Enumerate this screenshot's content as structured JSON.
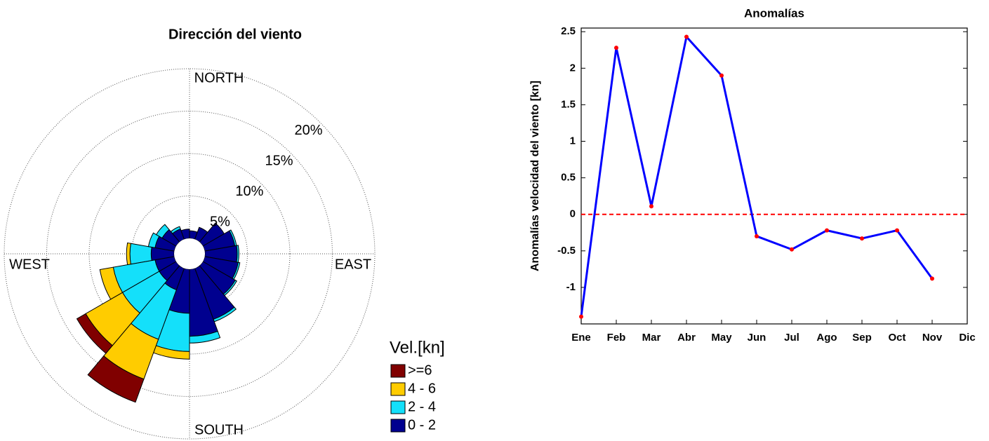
{
  "chart_data": [
    {
      "type": "windrose",
      "title": "Dirección del viento",
      "direction_labels": [
        "NORTH",
        "EAST",
        "SOUTH",
        "WEST"
      ],
      "categories": [
        null,
        null,
        null,
        null,
        null,
        null,
        null,
        null,
        null,
        null,
        null,
        null,
        null,
        null,
        null,
        null,
        null,
        null
      ],
      "rlim": [
        0,
        20
      ],
      "rticks": [
        {
          "value": 5,
          "label": "5%"
        },
        {
          "value": 10,
          "label": "10%"
        },
        {
          "value": 15,
          "label": "15%"
        },
        {
          "value": 20,
          "label": "20%"
        }
      ],
      "legend_title": "Vel.[kn]",
      "series": [
        {
          "name": "0 - 2",
          "color": "#00008f",
          "values": [
            0.9,
            1.5,
            2.9,
            3.6,
            3.8,
            4.0,
            4.4,
            6.4,
            7.9,
            5.2,
            2.7,
            2.3,
            2.3,
            2.7,
            2.3,
            1.9,
            1.3,
            1.1
          ]
        },
        {
          "name": "2 - 4",
          "color": "#14e0fa",
          "values": [
            0,
            0,
            0,
            0.2,
            0.2,
            0.2,
            0.2,
            0.3,
            0.8,
            4.5,
            6.2,
            5.0,
            5.0,
            2.5,
            0.8,
            0.8,
            0.3,
            0
          ]
        },
        {
          "name": "4 - 6",
          "color": "#ffcc00",
          "values": [
            0,
            0,
            0,
            0,
            0,
            0,
            0,
            0,
            0,
            0.9,
            5.0,
            5.0,
            1.6,
            0.4,
            0,
            0,
            0,
            0
          ]
        },
        {
          "name": ">=6",
          "color": "#800000",
          "values": [
            0,
            0,
            0,
            0,
            0,
            0,
            0,
            0,
            0,
            0,
            2.9,
            1.2,
            0,
            0,
            0,
            0,
            0,
            0
          ]
        }
      ]
    },
    {
      "type": "line",
      "title": "Anomalías",
      "ylabel": "Anomalías velocidad del viento [kn]",
      "categories": [
        "Ene",
        "Feb",
        "Mar",
        "Abr",
        "May",
        "Jun",
        "Jul",
        "Ago",
        "Sep",
        "Oct",
        "Nov",
        "Dic"
      ],
      "values": [
        -1.4,
        2.28,
        0.11,
        2.43,
        1.9,
        -0.3,
        -0.48,
        -0.22,
        -0.33,
        -0.22,
        -0.88,
        null
      ],
      "color": "#0000ff",
      "marker_color": "#ff0000",
      "hline": 0,
      "hline_color": "#ff0000",
      "ylim": [
        -1.5,
        2.55
      ],
      "yticks": [
        -1,
        -0.5,
        0,
        0.5,
        1,
        1.5,
        2,
        2.5
      ]
    }
  ]
}
